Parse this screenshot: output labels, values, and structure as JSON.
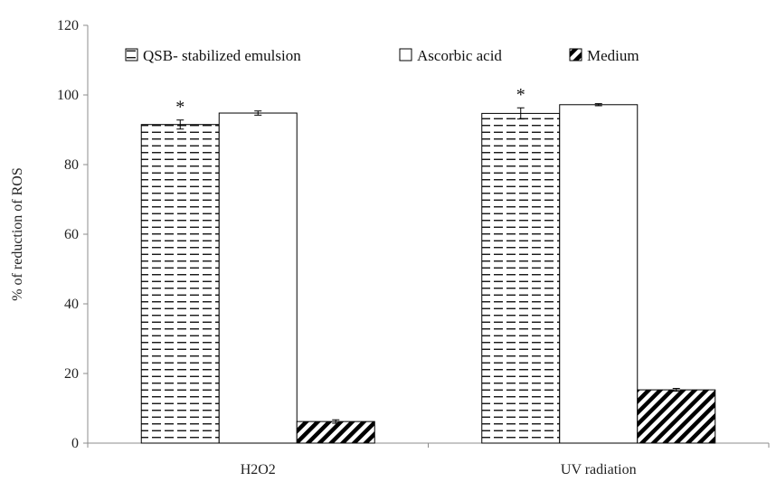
{
  "chart_data": {
    "type": "bar",
    "title": "",
    "xlabel": "",
    "ylabel": "% of reduction of ROS",
    "ylim": [
      0,
      120
    ],
    "yticks": [
      0,
      20,
      40,
      60,
      80,
      100,
      120
    ],
    "categories": [
      "H2O2",
      "UV radiation"
    ],
    "series": [
      {
        "name": "QSB- stabilized emulsion",
        "pattern": "horizontal-lines",
        "values": [
          91.5,
          94.7
        ],
        "errors": [
          1.3,
          1.6
        ],
        "annotations": [
          "*",
          "*"
        ]
      },
      {
        "name": "Ascorbic acid",
        "pattern": "solid-white",
        "values": [
          94.8,
          97.2
        ],
        "errors": [
          0.6,
          0.3
        ],
        "annotations": [
          "",
          ""
        ]
      },
      {
        "name": "Medium",
        "pattern": "diagonal-hatch",
        "values": [
          6.2,
          15.3
        ],
        "errors": [
          0.5,
          0.4
        ],
        "annotations": [
          "",
          ""
        ]
      }
    ],
    "grid": false,
    "legend_position": "top",
    "colors": {
      "stroke": "#000000",
      "fill": "#ffffff",
      "axis": "#8c8c8c"
    }
  }
}
